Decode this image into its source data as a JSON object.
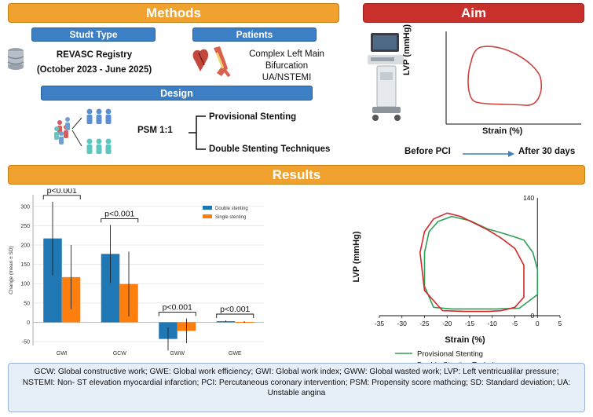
{
  "methods": {
    "title": "Methods",
    "study_type_label": "Studt Type",
    "registry": "REVASC Registry",
    "period": "(October 2023 - June 2025)",
    "patients_label": "Patients",
    "patients_lines": [
      "Complex Left Main",
      "Bifurcation",
      "UA/NSTEMI"
    ],
    "design_label": "Design",
    "psm": "PSM 1:1",
    "arm_1": "Provisional Stenting",
    "arm_2": "Double Stenting Techniques"
  },
  "aim": {
    "title": "Aim",
    "y_label": "LVP (mmHg)",
    "x_label": "Strain (%)",
    "timeline_start": "Before PCI",
    "timeline_end": "After 30 days"
  },
  "results": {
    "title": "Results"
  },
  "colors": {
    "orange_banner": "#f0a12e",
    "red_banner": "#c9302c",
    "blue_label": "#3d7fc4",
    "double_stenting": "#1f77b4",
    "single_stenting": "#ff7f0e",
    "provisional_loop": "#2e9e57",
    "double_loop": "#d62728"
  },
  "chart_data": [
    {
      "type": "bar",
      "categories": [
        "GWI",
        "GCW",
        "GWW",
        "GWE"
      ],
      "series": [
        {
          "name": "Double stenting",
          "values": [
            217,
            177,
            -43,
            3
          ],
          "error": [
            95,
            75,
            30,
            2
          ]
        },
        {
          "name": "Single stenting",
          "values": [
            117,
            99,
            -22,
            1
          ],
          "error": [
            83,
            84,
            32,
            2
          ]
        }
      ],
      "ylabel": "Change (mean ± SD)",
      "ylim": [
        -60,
        330
      ],
      "yticks": [
        -50,
        0,
        50,
        100,
        150,
        200,
        250,
        300
      ],
      "grid": true,
      "legend": "top-right",
      "annotations": [
        "p<0.001",
        "p<0.001",
        "p<0.001",
        "p<0.001"
      ]
    },
    {
      "type": "line",
      "xlabel": "Strain (%)",
      "ylabel": "LVP (mmHg)",
      "xlim": [
        -35,
        5
      ],
      "xticks": [
        -35,
        -30,
        -25,
        -20,
        -15,
        -10,
        -5,
        0,
        5
      ],
      "ylim": [
        0,
        140
      ],
      "yticks": [
        0,
        140
      ],
      "legend": "bottom",
      "series": [
        {
          "name": "Provisional Stenting",
          "x": [
            -19,
            -15,
            -11,
            -7,
            -3,
            -1,
            0,
            0,
            -4,
            -9,
            -14,
            -19,
            -23,
            -25,
            -25,
            -24,
            -22,
            -19
          ],
          "y": [
            118,
            113,
            103,
            97,
            90,
            75,
            55,
            25,
            9,
            8,
            8,
            8,
            10,
            35,
            75,
            100,
            112,
            118
          ]
        },
        {
          "name": "Double Stenting Technique",
          "x": [
            -20,
            -17,
            -14,
            -11,
            -8,
            -5,
            -3,
            -3,
            -5,
            -8,
            -11,
            -16,
            -21,
            -25,
            -26,
            -25,
            -23,
            -20
          ],
          "y": [
            122,
            118,
            110,
            102,
            92,
            80,
            60,
            22,
            10,
            6,
            5,
            5,
            6,
            30,
            75,
            100,
            115,
            122
          ]
        }
      ]
    }
  ],
  "abbreviations": "GCW: Global constructive work; GWE: Global work efficiency; GWI: Global work index; GWW: Global wasted work; LVP: Left ventricualilar pressure; NSTEMI: Non- ST elevation myocardial infarction; PCI: Percutaneous coronary intervention; PSM: Propensity score mathcing; SD: Standard deviation; UA: Unstable angina"
}
